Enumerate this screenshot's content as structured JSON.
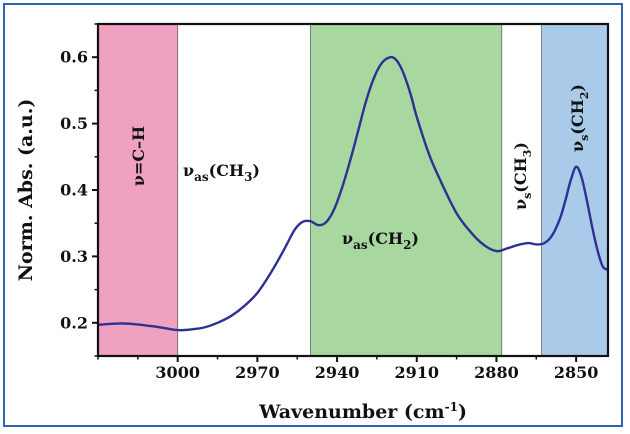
{
  "chart_data": {
    "type": "line",
    "x_reversed": true,
    "xlim": [
      3030,
      2838
    ],
    "ylim": [
      0.15,
      0.65
    ],
    "x_ticks": [
      3000,
      2970,
      2940,
      2910,
      2880,
      2850
    ],
    "y_ticks": [
      0.2,
      0.3,
      0.4,
      0.5,
      0.6
    ],
    "xlabel": {
      "main": "Wavenumber (cm",
      "sup": "-1",
      "end": ")"
    },
    "ylabel": "Norm. Abs. (a.u.)",
    "series": [
      {
        "color": "#2e3192",
        "x": [
          3030,
          3020,
          3010,
          3005,
          3000,
          2995,
          2990,
          2985,
          2980,
          2975,
          2970,
          2965,
          2960,
          2956,
          2953,
          2950,
          2947,
          2944,
          2941,
          2938,
          2935,
          2932,
          2929,
          2926,
          2923,
          2920,
          2918,
          2916,
          2914,
          2912,
          2910,
          2905,
          2900,
          2895,
          2890,
          2885,
          2880,
          2876,
          2872,
          2868,
          2865,
          2862,
          2859,
          2856,
          2854,
          2852,
          2850,
          2848,
          2846,
          2844,
          2842,
          2840,
          2838
        ],
        "y": [
          0.197,
          0.199,
          0.195,
          0.192,
          0.189,
          0.19,
          0.193,
          0.2,
          0.21,
          0.225,
          0.245,
          0.275,
          0.31,
          0.34,
          0.352,
          0.353,
          0.347,
          0.352,
          0.372,
          0.405,
          0.445,
          0.49,
          0.535,
          0.57,
          0.592,
          0.6,
          0.597,
          0.585,
          0.565,
          0.54,
          0.51,
          0.45,
          0.405,
          0.365,
          0.338,
          0.318,
          0.308,
          0.312,
          0.317,
          0.32,
          0.318,
          0.32,
          0.332,
          0.358,
          0.385,
          0.415,
          0.435,
          0.42,
          0.385,
          0.345,
          0.31,
          0.285,
          0.28
        ]
      }
    ],
    "bands": [
      {
        "x0": 3030,
        "x1": 3000,
        "color": "#f0a0c0",
        "label": "ν=C–H"
      },
      {
        "x0": 2950,
        "x1": 2878,
        "color": "#a8d8a0"
      },
      {
        "x0": 2863,
        "x1": 2838,
        "color": "#a9cbe9"
      }
    ],
    "annotations": {
      "vas_ch3": {
        "nu": "ν",
        "sub": "as",
        "body": "(CH",
        "sub2": "3",
        "end": ")"
      },
      "vas_ch2": {
        "nu": "ν",
        "sub": "as",
        "body": "(CH",
        "sub2": "2",
        "end": ")"
      },
      "vs_ch3": {
        "nu": "ν",
        "sub": "s",
        "body": "(CH",
        "sub2": "3",
        "end": ")"
      },
      "vs_ch2": {
        "nu": "ν",
        "sub": "s",
        "body": "(CH",
        "sub2": "2",
        "end": ")"
      }
    }
  }
}
